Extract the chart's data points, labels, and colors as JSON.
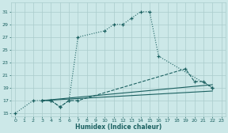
{
  "xlabel": "Humidex (Indice chaleur)",
  "bg_color": "#cce8e8",
  "grid_color": "#aacccc",
  "line_color": "#1a6060",
  "xlim": [
    -0.5,
    23.5
  ],
  "ylim": [
    14.5,
    32.5
  ],
  "xticks": [
    0,
    1,
    2,
    3,
    4,
    5,
    6,
    7,
    8,
    9,
    10,
    11,
    12,
    13,
    14,
    15,
    16,
    17,
    18,
    19,
    20,
    21,
    22,
    23
  ],
  "yticks": [
    15,
    17,
    19,
    21,
    23,
    25,
    27,
    29,
    31
  ],
  "line1_x": [
    0,
    2,
    3,
    4,
    5,
    6,
    7,
    10,
    11,
    12,
    13,
    14,
    15,
    16,
    22
  ],
  "line1_y": [
    15,
    17,
    17,
    17,
    16,
    17,
    27,
    28,
    29,
    29,
    30,
    31,
    31,
    24,
    19
  ],
  "line2_x": [
    3,
    4,
    5,
    6,
    7,
    19,
    20,
    21,
    22
  ],
  "line2_y": [
    17,
    17,
    16,
    17,
    17,
    22,
    20,
    20,
    19
  ],
  "line3_x": [
    3,
    22
  ],
  "line3_y": [
    17,
    19.5
  ],
  "line4_x": [
    3,
    22
  ],
  "line4_y": [
    17,
    18.5
  ],
  "figw": 2.88,
  "figh": 1.68,
  "dpi": 100
}
